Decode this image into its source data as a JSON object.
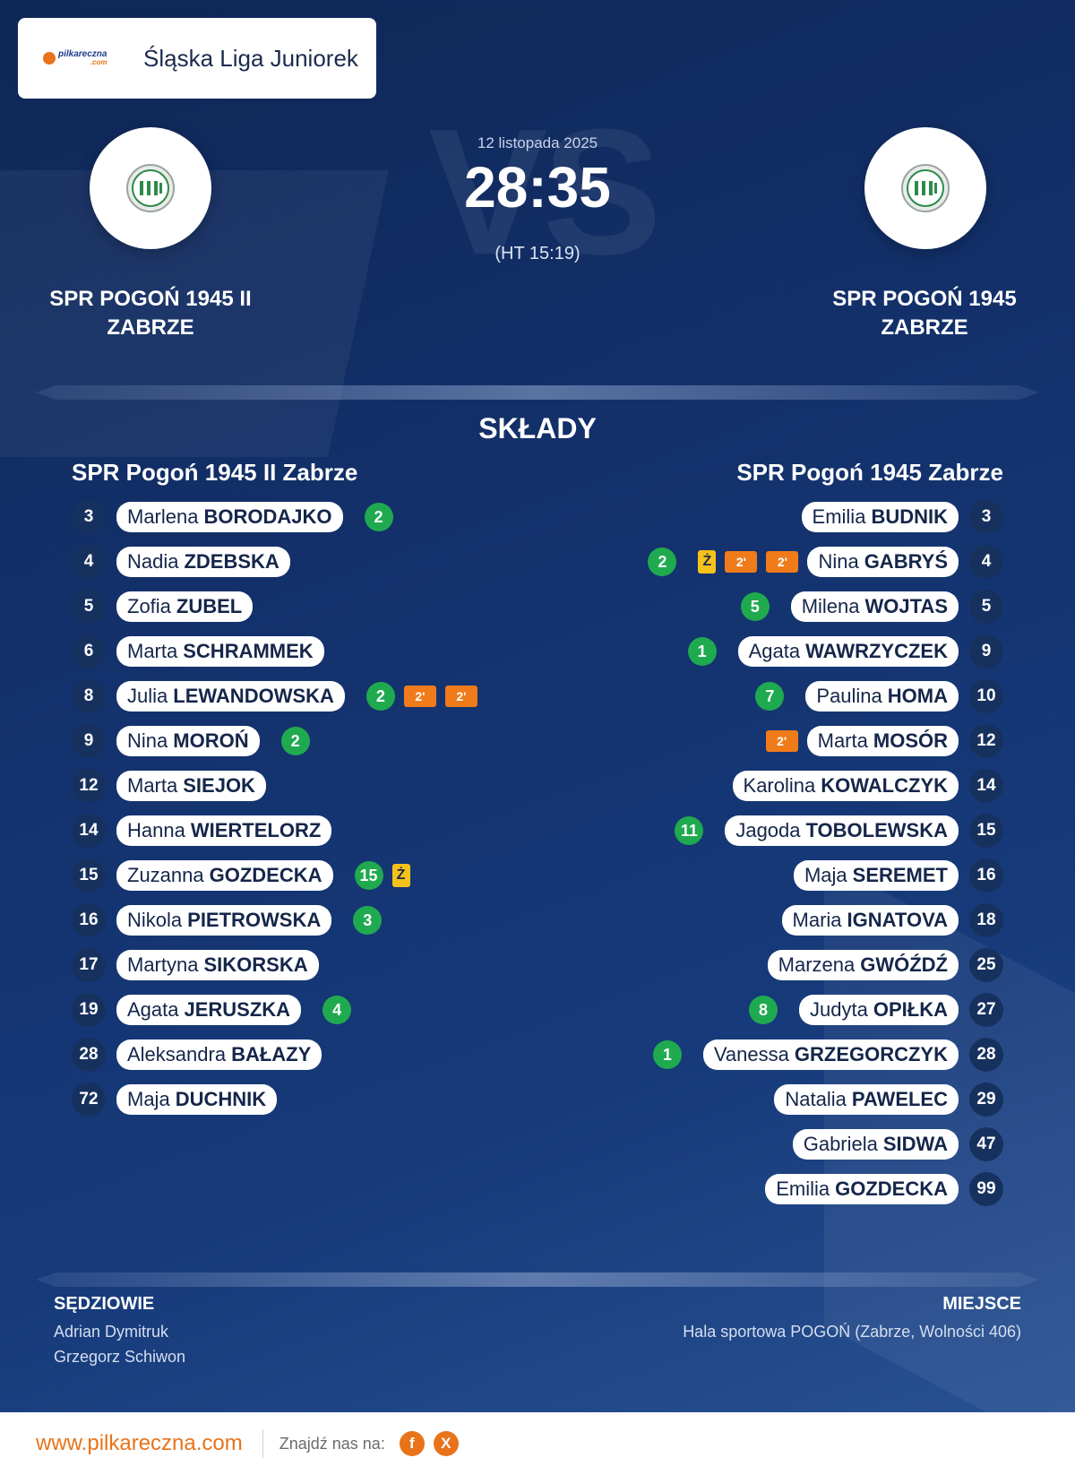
{
  "header": {
    "logo_text": "pilkareczna",
    "logo_sub": ".com",
    "league": "Śląska Liga Juniorek"
  },
  "match": {
    "date": "12 listopada 2025",
    "score": "28:35",
    "halftime": "(HT 15:19)",
    "vs_watermark": "VS",
    "home": {
      "name_line1": "SPR POGOŃ 1945 II",
      "name_line2": "ZABRZE"
    },
    "away": {
      "name_line1": "SPR POGOŃ 1945",
      "name_line2": "ZABRZE"
    }
  },
  "lineups": {
    "title": "SKŁADY",
    "home": {
      "team": "SPR Pogoń 1945 II Zabrze",
      "players": [
        {
          "no": "3",
          "first": "Marlena",
          "last": "BORODAJKO",
          "goals": "2"
        },
        {
          "no": "4",
          "first": "Nadia",
          "last": "ZDEBSKA"
        },
        {
          "no": "5",
          "first": "Zofia",
          "last": "ZUBEL"
        },
        {
          "no": "6",
          "first": "Marta",
          "last": "SCHRAMMEK"
        },
        {
          "no": "8",
          "first": "Julia",
          "last": "LEWANDOWSKA",
          "goals": "2",
          "pen1": "2'",
          "pen2": "2'"
        },
        {
          "no": "9",
          "first": "Nina",
          "last": "MOROŃ",
          "goals": "2"
        },
        {
          "no": "12",
          "first": "Marta",
          "last": "SIEJOK"
        },
        {
          "no": "14",
          "first": "Hanna",
          "last": "WIERTELORZ"
        },
        {
          "no": "15",
          "first": "Zuzanna",
          "last": "GOZDECKA",
          "goals": "15",
          "yellow": "Ż"
        },
        {
          "no": "16",
          "first": "Nikola",
          "last": "PIETROWSKA",
          "goals": "3"
        },
        {
          "no": "17",
          "first": "Martyna",
          "last": "SIKORSKA"
        },
        {
          "no": "19",
          "first": "Agata",
          "last": "JERUSZKA",
          "goals": "4"
        },
        {
          "no": "28",
          "first": "Aleksandra",
          "last": "BAŁAZY"
        },
        {
          "no": "72",
          "first": "Maja",
          "last": "DUCHNIK"
        }
      ]
    },
    "away": {
      "team": "SPR Pogoń 1945 Zabrze",
      "players": [
        {
          "no": "3",
          "first": "Emilia",
          "last": "BUDNIK"
        },
        {
          "no": "4",
          "first": "Nina",
          "last": "GABRYŚ",
          "goals": "2",
          "yellow": "Ż",
          "pen1": "2'",
          "pen2": "2'"
        },
        {
          "no": "5",
          "first": "Milena",
          "last": "WOJTAS",
          "goals": "5"
        },
        {
          "no": "9",
          "first": "Agata",
          "last": "WAWRZYCZEK",
          "goals": "1"
        },
        {
          "no": "10",
          "first": "Paulina",
          "last": "HOMA",
          "goals": "7"
        },
        {
          "no": "12",
          "first": "Marta",
          "last": "MOSÓR",
          "pen1": "2'"
        },
        {
          "no": "14",
          "first": "Karolina",
          "last": "KOWALCZYK"
        },
        {
          "no": "15",
          "first": "Jagoda",
          "last": "TOBOLEWSKA",
          "goals": "11"
        },
        {
          "no": "16",
          "first": "Maja",
          "last": "SEREMET"
        },
        {
          "no": "18",
          "first": "Maria",
          "last": "IGNATOVA"
        },
        {
          "no": "25",
          "first": "Marzena",
          "last": "GWÓŹDŹ"
        },
        {
          "no": "27",
          "first": "Judyta",
          "last": "OPIŁKA",
          "goals": "8"
        },
        {
          "no": "28",
          "first": "Vanessa",
          "last": "GRZEGORCZYK",
          "goals": "1"
        },
        {
          "no": "29",
          "first": "Natalia",
          "last": "PAWELEC"
        },
        {
          "no": "47",
          "first": "Gabriela",
          "last": "SIDWA"
        },
        {
          "no": "99",
          "first": "Emilia",
          "last": "GOZDECKA"
        }
      ]
    }
  },
  "officials": {
    "title": "SĘDZIOWIE",
    "names": [
      "Adrian Dymitruk",
      "Grzegorz Schiwon"
    ]
  },
  "venue": {
    "title": "MIEJSCE",
    "name": "Hala sportowa POGOŃ (Zabrze, Wolności 406)"
  },
  "footer": {
    "site": "www.pilkareczna.com",
    "find_us": "Znajdź nas na:",
    "social": [
      {
        "icon": "facebook-icon",
        "glyph": "f"
      },
      {
        "icon": "x-icon",
        "glyph": "X"
      }
    ]
  },
  "colors": {
    "accent": "#e8731a",
    "goal": "#1faa4f",
    "penalty": "#f07b1a",
    "yellow_card": "#f6c21a",
    "navy": "#13306a"
  }
}
